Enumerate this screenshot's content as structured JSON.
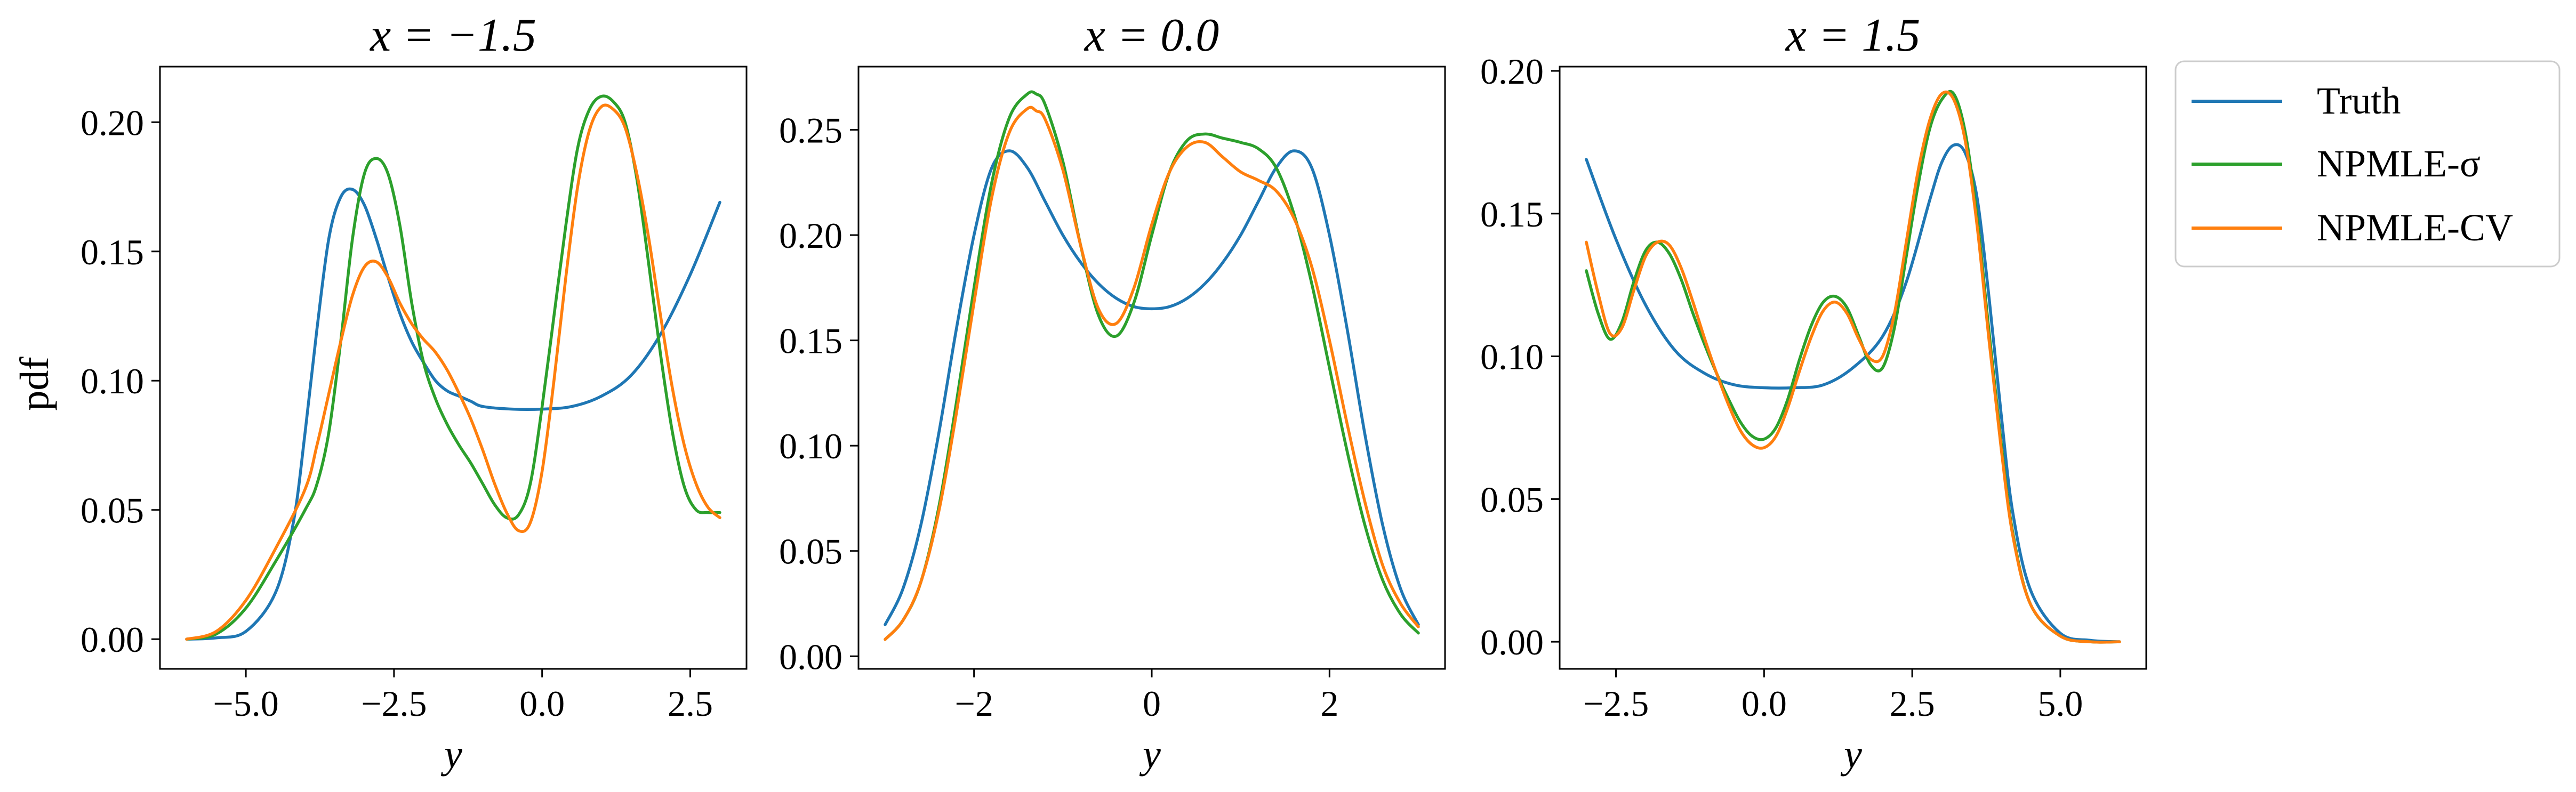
{
  "chart_data": [
    {
      "type": "line",
      "title": "x = −1.5",
      "xlabel": "y",
      "ylabel": "pdf",
      "xlim": [
        -6.45,
        3.45
      ],
      "ylim": [
        -0.0115,
        0.2215
      ],
      "xticks": [
        -5.0,
        -2.5,
        0.0,
        2.5
      ],
      "xtick_labels": [
        "−5.0",
        "−2.5",
        "0.0",
        "2.5"
      ],
      "yticks": [
        0.0,
        0.05,
        0.1,
        0.15,
        0.2
      ],
      "ytick_labels": [
        "0.00",
        "0.05",
        "0.10",
        "0.15",
        "0.20"
      ],
      "grid": false,
      "series": [
        {
          "name": "Truth",
          "color": "#1f77b4",
          "x": [
            -6.0,
            -5.5,
            -5.0,
            -4.5,
            -4.2,
            -4.0,
            -3.8,
            -3.6,
            -3.4,
            -3.2,
            -3.0,
            -2.8,
            -2.6,
            -2.4,
            -2.2,
            -2.0,
            -1.8,
            -1.6,
            -1.4,
            -1.2,
            -1.0,
            -0.5,
            0.0,
            0.5,
            1.0,
            1.5,
            2.0,
            2.5,
            3.0
          ],
          "y": [
            0.0,
            0.0005,
            0.003,
            0.018,
            0.045,
            0.08,
            0.12,
            0.155,
            0.171,
            0.174,
            0.168,
            0.155,
            0.14,
            0.126,
            0.115,
            0.107,
            0.1,
            0.096,
            0.094,
            0.092,
            0.09,
            0.089,
            0.089,
            0.09,
            0.094,
            0.102,
            0.118,
            0.141,
            0.169
          ]
        },
        {
          "name": "NPMLE-σ",
          "color": "#2ca02c",
          "x": [
            -6.0,
            -5.5,
            -5.0,
            -4.5,
            -4.0,
            -3.8,
            -3.6,
            -3.4,
            -3.2,
            -3.0,
            -2.8,
            -2.6,
            -2.4,
            -2.2,
            -2.0,
            -1.8,
            -1.6,
            -1.4,
            -1.2,
            -1.0,
            -0.8,
            -0.6,
            -0.4,
            -0.2,
            0.0,
            0.2,
            0.4,
            0.6,
            0.8,
            1.0,
            1.2,
            1.4,
            1.6,
            1.8,
            2.0,
            2.2,
            2.4,
            2.6,
            2.8,
            3.0
          ],
          "y": [
            0.0,
            0.002,
            0.012,
            0.03,
            0.05,
            0.06,
            0.08,
            0.115,
            0.155,
            0.18,
            0.186,
            0.18,
            0.16,
            0.13,
            0.107,
            0.093,
            0.083,
            0.075,
            0.068,
            0.06,
            0.052,
            0.047,
            0.048,
            0.06,
            0.09,
            0.125,
            0.16,
            0.19,
            0.205,
            0.21,
            0.208,
            0.2,
            0.178,
            0.145,
            0.11,
            0.08,
            0.059,
            0.05,
            0.049,
            0.049
          ]
        },
        {
          "name": "NPMLE-CV",
          "color": "#ff7f0e",
          "x": [
            -6.0,
            -5.5,
            -5.0,
            -4.5,
            -4.0,
            -3.8,
            -3.6,
            -3.4,
            -3.2,
            -3.0,
            -2.8,
            -2.6,
            -2.4,
            -2.2,
            -2.0,
            -1.8,
            -1.6,
            -1.4,
            -1.2,
            -1.0,
            -0.8,
            -0.6,
            -0.4,
            -0.2,
            0.0,
            0.2,
            0.4,
            0.6,
            0.8,
            1.0,
            1.2,
            1.4,
            1.6,
            1.8,
            2.0,
            2.2,
            2.4,
            2.6,
            2.8,
            3.0
          ],
          "y": [
            0.0,
            0.003,
            0.015,
            0.035,
            0.058,
            0.075,
            0.095,
            0.115,
            0.133,
            0.144,
            0.146,
            0.14,
            0.13,
            0.122,
            0.116,
            0.111,
            0.104,
            0.095,
            0.085,
            0.073,
            0.06,
            0.049,
            0.042,
            0.045,
            0.065,
            0.1,
            0.14,
            0.175,
            0.197,
            0.206,
            0.205,
            0.198,
            0.18,
            0.155,
            0.125,
            0.097,
            0.075,
            0.06,
            0.051,
            0.047
          ]
        }
      ]
    },
    {
      "type": "line",
      "title": "x = 0.0",
      "xlabel": "y",
      "ylim": [
        -0.006,
        0.28
      ],
      "xlim": [
        -3.3,
        3.3
      ],
      "xticks": [
        -2,
        0,
        2
      ],
      "xtick_labels": [
        "−2",
        "0",
        "2"
      ],
      "yticks": [
        0.0,
        0.05,
        0.1,
        0.15,
        0.2,
        0.25
      ],
      "ytick_labels": [
        "0.00",
        "0.05",
        "0.10",
        "0.15",
        "0.20",
        "0.25"
      ],
      "grid": false,
      "series": [
        {
          "name": "Truth",
          "color": "#1f77b4",
          "x": [
            -3.0,
            -2.8,
            -2.6,
            -2.4,
            -2.2,
            -2.0,
            -1.8,
            -1.6,
            -1.4,
            -1.2,
            -1.0,
            -0.8,
            -0.6,
            -0.4,
            -0.2,
            0.0,
            0.2,
            0.4,
            0.6,
            0.8,
            1.0,
            1.2,
            1.4,
            1.6,
            1.8,
            2.0,
            2.2,
            2.4,
            2.6,
            2.8,
            3.0
          ],
          "y": [
            0.015,
            0.032,
            0.062,
            0.105,
            0.155,
            0.2,
            0.232,
            0.24,
            0.232,
            0.216,
            0.2,
            0.187,
            0.177,
            0.17,
            0.166,
            0.165,
            0.166,
            0.17,
            0.177,
            0.187,
            0.2,
            0.216,
            0.232,
            0.24,
            0.232,
            0.2,
            0.155,
            0.105,
            0.062,
            0.032,
            0.015
          ]
        },
        {
          "name": "NPMLE-σ",
          "color": "#2ca02c",
          "x": [
            -3.0,
            -2.8,
            -2.6,
            -2.4,
            -2.2,
            -2.0,
            -1.8,
            -1.6,
            -1.4,
            -1.3,
            -1.2,
            -1.0,
            -0.8,
            -0.6,
            -0.4,
            -0.2,
            0.0,
            0.2,
            0.4,
            0.6,
            0.8,
            1.0,
            1.2,
            1.4,
            1.6,
            1.8,
            2.0,
            2.2,
            2.4,
            2.6,
            2.8,
            3.0
          ],
          "y": [
            0.008,
            0.017,
            0.035,
            0.07,
            0.12,
            0.175,
            0.225,
            0.256,
            0.267,
            0.267,
            0.262,
            0.235,
            0.195,
            0.162,
            0.152,
            0.168,
            0.2,
            0.23,
            0.245,
            0.248,
            0.246,
            0.244,
            0.241,
            0.232,
            0.21,
            0.177,
            0.137,
            0.097,
            0.062,
            0.036,
            0.02,
            0.011
          ]
        },
        {
          "name": "NPMLE-CV",
          "color": "#ff7f0e",
          "x": [
            -3.0,
            -2.8,
            -2.6,
            -2.4,
            -2.2,
            -2.0,
            -1.8,
            -1.6,
            -1.4,
            -1.3,
            -1.2,
            -1.0,
            -0.8,
            -0.6,
            -0.4,
            -0.2,
            0.0,
            0.2,
            0.4,
            0.6,
            0.8,
            1.0,
            1.2,
            1.4,
            1.6,
            1.8,
            2.0,
            2.2,
            2.4,
            2.6,
            2.8,
            3.0
          ],
          "y": [
            0.008,
            0.017,
            0.035,
            0.068,
            0.115,
            0.168,
            0.218,
            0.249,
            0.26,
            0.259,
            0.255,
            0.231,
            0.195,
            0.165,
            0.158,
            0.175,
            0.205,
            0.23,
            0.242,
            0.244,
            0.237,
            0.23,
            0.226,
            0.221,
            0.208,
            0.185,
            0.15,
            0.11,
            0.073,
            0.043,
            0.025,
            0.014
          ]
        }
      ]
    },
    {
      "type": "line",
      "title": "x = 1.5",
      "xlabel": "y",
      "xlim": [
        -3.45,
        6.45
      ],
      "ylim": [
        -0.0095,
        0.2015
      ],
      "xticks": [
        -2.5,
        0.0,
        2.5,
        5.0
      ],
      "xtick_labels": [
        "−2.5",
        "0.0",
        "2.5",
        "5.0"
      ],
      "yticks": [
        0.0,
        0.05,
        0.1,
        0.15,
        0.2
      ],
      "ytick_labels": [
        "0.00",
        "0.05",
        "0.10",
        "0.15",
        "0.20"
      ],
      "grid": false,
      "series": [
        {
          "name": "Truth",
          "color": "#1f77b4",
          "x": [
            -3.0,
            -2.5,
            -2.0,
            -1.5,
            -1.0,
            -0.5,
            0.0,
            0.5,
            1.0,
            1.5,
            2.0,
            2.4,
            2.8,
            3.0,
            3.2,
            3.4,
            3.6,
            3.8,
            4.0,
            4.2,
            4.5,
            5.0,
            5.5,
            6.0
          ],
          "y": [
            0.169,
            0.141,
            0.118,
            0.102,
            0.094,
            0.09,
            0.089,
            0.089,
            0.09,
            0.096,
            0.107,
            0.126,
            0.155,
            0.168,
            0.174,
            0.171,
            0.155,
            0.12,
            0.08,
            0.045,
            0.018,
            0.003,
            0.0005,
            0.0
          ]
        },
        {
          "name": "NPMLE-σ",
          "color": "#2ca02c",
          "x": [
            -3.0,
            -2.8,
            -2.6,
            -2.4,
            -2.2,
            -2.0,
            -1.8,
            -1.6,
            -1.4,
            -1.2,
            -1.0,
            -0.8,
            -0.6,
            -0.4,
            -0.2,
            0.0,
            0.2,
            0.4,
            0.6,
            0.8,
            1.0,
            1.2,
            1.4,
            1.6,
            1.8,
            2.0,
            2.2,
            2.4,
            2.6,
            2.8,
            3.0,
            3.2,
            3.4,
            3.6,
            3.8,
            4.0,
            4.2,
            4.5,
            5.0,
            5.5,
            6.0
          ],
          "y": [
            0.13,
            0.115,
            0.106,
            0.112,
            0.126,
            0.137,
            0.14,
            0.136,
            0.127,
            0.115,
            0.104,
            0.094,
            0.085,
            0.077,
            0.072,
            0.071,
            0.075,
            0.085,
            0.099,
            0.111,
            0.119,
            0.121,
            0.117,
            0.107,
            0.097,
            0.096,
            0.11,
            0.135,
            0.16,
            0.18,
            0.19,
            0.192,
            0.178,
            0.148,
            0.108,
            0.07,
            0.038,
            0.013,
            0.002,
            0.0,
            0.0
          ]
        },
        {
          "name": "NPMLE-CV",
          "color": "#ff7f0e",
          "x": [
            -3.0,
            -2.8,
            -2.6,
            -2.4,
            -2.2,
            -2.0,
            -1.8,
            -1.6,
            -1.4,
            -1.2,
            -1.0,
            -0.8,
            -0.6,
            -0.4,
            -0.2,
            0.0,
            0.2,
            0.4,
            0.6,
            0.8,
            1.0,
            1.2,
            1.4,
            1.6,
            1.8,
            2.0,
            2.2,
            2.4,
            2.6,
            2.8,
            3.0,
            3.2,
            3.4,
            3.6,
            3.8,
            4.0,
            4.2,
            4.5,
            5.0,
            5.5,
            6.0
          ],
          "y": [
            0.14,
            0.122,
            0.108,
            0.11,
            0.123,
            0.135,
            0.14,
            0.139,
            0.131,
            0.119,
            0.106,
            0.094,
            0.083,
            0.074,
            0.069,
            0.068,
            0.072,
            0.082,
            0.095,
            0.107,
            0.116,
            0.119,
            0.115,
            0.106,
            0.099,
            0.1,
            0.115,
            0.14,
            0.165,
            0.183,
            0.192,
            0.19,
            0.175,
            0.145,
            0.105,
            0.068,
            0.037,
            0.013,
            0.002,
            0.0,
            0.0
          ]
        }
      ]
    }
  ],
  "legend": {
    "placement": "outside-right",
    "entries": [
      {
        "label": "Truth",
        "color": "#1f77b4"
      },
      {
        "label": "NPMLE-σ",
        "color": "#2ca02c"
      },
      {
        "label": "NPMLE-CV",
        "color": "#ff7f0e"
      }
    ]
  }
}
